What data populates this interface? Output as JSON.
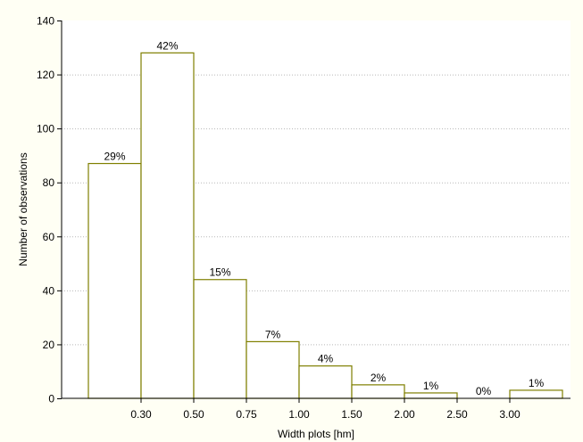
{
  "chart_data": {
    "type": "bar",
    "title": "",
    "xlabel": "Width plots [hm]",
    "ylabel": "Number of observations",
    "ylim": [
      0,
      140
    ],
    "yticks": [
      "0",
      "20",
      "40",
      "60",
      "80",
      "100",
      "120",
      "140"
    ],
    "xticks": [
      "0.30",
      "0.50",
      "0.75",
      "1.00",
      "1.50",
      "2.00",
      "2.50",
      "3.00"
    ],
    "grid": true,
    "bars": [
      {
        "value": 87,
        "label": "29%"
      },
      {
        "value": 128,
        "label": "42%"
      },
      {
        "value": 44,
        "label": "15%"
      },
      {
        "value": 21,
        "label": "7%"
      },
      {
        "value": 12,
        "label": "4%"
      },
      {
        "value": 5,
        "label": "2%"
      },
      {
        "value": 2,
        "label": "1%"
      },
      {
        "value": 0,
        "label": "0%"
      },
      {
        "value": 3,
        "label": "1%"
      }
    ],
    "colors": {
      "bar_stroke": "#7f7f00",
      "bar_fill": "#ffffff",
      "background": "#fffff4",
      "plot_background": "#ffffff"
    }
  }
}
